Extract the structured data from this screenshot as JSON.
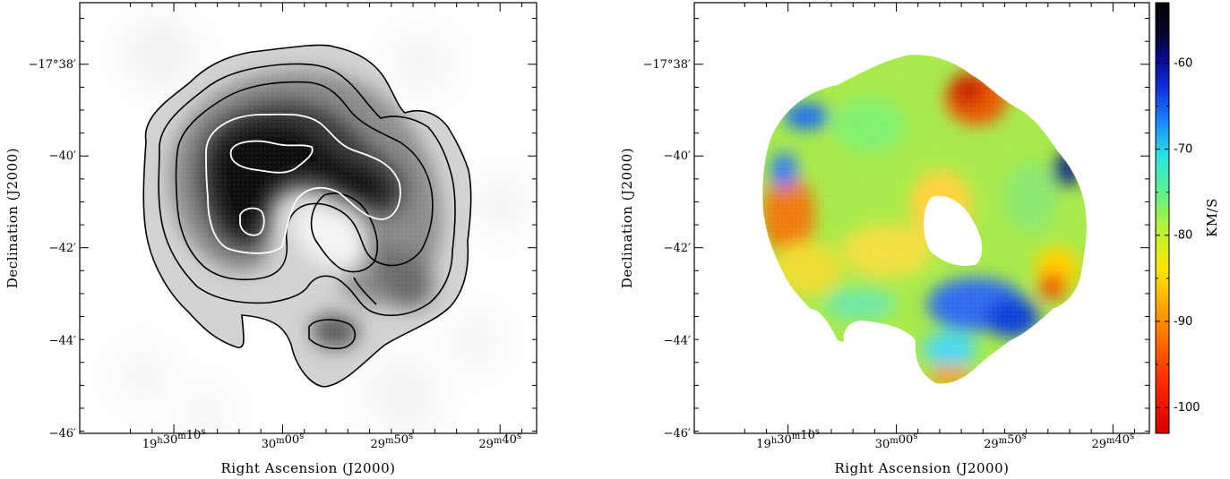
{
  "chart_data": [
    {
      "type": "heatmap",
      "panel": "left",
      "colormap": "grayscale (white = low, black = high intensity)",
      "contours": {
        "dark_levels": 4,
        "light_levels": 2,
        "dark_color": "#000000",
        "light_color": "#ffffff"
      },
      "xlabel": "Right Ascension (J2000)",
      "ylabel": "Declination (J2000)",
      "x_ticks": [
        {
          "main": "19",
          "u1": "h",
          "mid": "30",
          "u2": "m",
          "end": "10",
          "u3": "s"
        },
        {
          "main": "30",
          "u1": "m",
          "mid": "00",
          "u2": "s",
          "end": "",
          "u3": ""
        },
        {
          "main": "29",
          "u1": "m",
          "mid": "50",
          "u2": "s",
          "end": "",
          "u3": ""
        },
        {
          "main": "29",
          "u1": "m",
          "mid": "40",
          "u2": "s",
          "end": "",
          "u3": ""
        }
      ],
      "y_ticks": [
        "−17°38′",
        "−40′",
        "−42′",
        "−44′",
        "−46′"
      ]
    },
    {
      "type": "heatmap",
      "panel": "right",
      "colormap": "jet (red = -100 km/s, blue = -60 km/s, black beyond -55)",
      "xlabel": "Right Ascension (J2000)",
      "ylabel": "Declination (J2000)",
      "x_ticks": [
        {
          "main": "19",
          "u1": "h",
          "mid": "30",
          "u2": "m",
          "end": "10",
          "u3": "s"
        },
        {
          "main": "30",
          "u1": "m",
          "mid": "00",
          "u2": "s",
          "end": "",
          "u3": ""
        },
        {
          "main": "29",
          "u1": "m",
          "mid": "50",
          "u2": "s",
          "end": "",
          "u3": ""
        },
        {
          "main": "29",
          "u1": "m",
          "mid": "40",
          "u2": "s",
          "end": "",
          "u3": ""
        }
      ],
      "y_ticks": [
        "−17°38′",
        "−40′",
        "−42′",
        "−44′",
        "−46′"
      ],
      "colorbar": {
        "label": "KM/S",
        "range": [
          -103,
          -53
        ],
        "ticks": [
          -60,
          -70,
          -80,
          -90,
          -100
        ],
        "tick_labels": [
          "-60",
          "-70",
          "-80",
          "-90",
          "-100"
        ]
      }
    }
  ]
}
